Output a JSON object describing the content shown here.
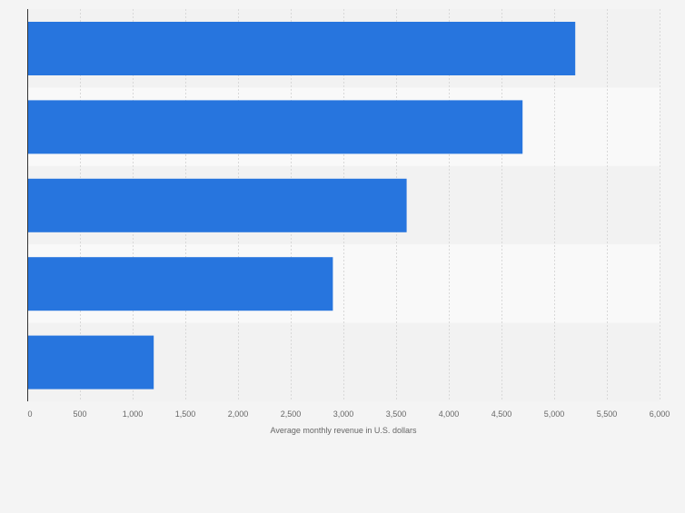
{
  "chart_data": {
    "type": "bar",
    "orientation": "horizontal",
    "categories": [
      "",
      "",
      "",
      "",
      ""
    ],
    "values": [
      5200,
      4700,
      3600,
      2900,
      1200
    ],
    "xlabel": "Average monthly revenue in U.S. dollars",
    "xlim": [
      0,
      6000
    ],
    "xticks": [
      0,
      500,
      1000,
      1500,
      2000,
      2500,
      3000,
      3500,
      4000,
      4500,
      5000,
      5500,
      6000
    ],
    "xtick_labels": [
      "0",
      "500",
      "1,000",
      "1,500",
      "2,000",
      "2,500",
      "3,000",
      "3,500",
      "4,000",
      "4,500",
      "5,000",
      "5,500",
      "6,000"
    ],
    "grid": true,
    "colors": {
      "bar": "#2775de",
      "band_a": "#f2f2f2",
      "band_b": "#f9f9f9",
      "page": "#f4f4f4",
      "grid": "#d8d8d8",
      "axis": "#333333",
      "tick_text": "#666666"
    }
  }
}
